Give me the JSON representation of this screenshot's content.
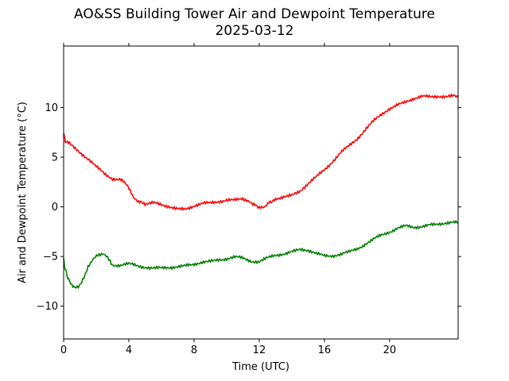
{
  "chart_data": {
    "type": "line",
    "title": "AO&SS Building Tower Air and Dewpoint Temperature",
    "subtitle": "2025-03-12",
    "xlabel": "Time (UTC)",
    "ylabel": "Air and Dewpoint Temperature (°C)",
    "xlim": [
      0,
      24.2
    ],
    "ylim": [
      -13.3,
      16.2
    ],
    "xticks": [
      0,
      4,
      8,
      12,
      16,
      20
    ],
    "xtick_labels": [
      "0",
      "4",
      "8",
      "12",
      "16",
      "20"
    ],
    "yticks": [
      -10,
      -5,
      0,
      5,
      10
    ],
    "ytick_labels": [
      "−10",
      "−5",
      "0",
      "5",
      "10"
    ],
    "grid": false,
    "legend": "none",
    "series": [
      {
        "color": "#ff0000",
        "x": [
          0,
          0.05,
          0.1,
          0.5,
          1.0,
          1.5,
          2.0,
          2.5,
          3.0,
          3.5,
          3.8,
          4.0,
          4.3,
          4.6,
          5.0,
          5.5,
          6.0,
          6.5,
          7.0,
          7.5,
          8.0,
          8.5,
          9.0,
          9.5,
          10.0,
          10.5,
          11.0,
          11.3,
          11.6,
          12.0,
          12.3,
          12.6,
          13.0,
          13.5,
          14.0,
          14.5,
          15.0,
          15.5,
          16.0,
          16.5,
          17.0,
          17.5,
          18.0,
          18.5,
          19.0,
          19.5,
          20.0,
          20.5,
          21.0,
          21.5,
          22.0,
          22.5,
          23.0,
          23.5,
          24.0,
          24.2
        ],
        "y": [
          7.4,
          7.0,
          6.6,
          6.2,
          5.5,
          4.8,
          4.0,
          3.4,
          2.9,
          2.7,
          2.4,
          1.8,
          1.0,
          0.5,
          0.3,
          0.4,
          0.2,
          0.0,
          -0.2,
          -0.2,
          0.1,
          0.3,
          0.4,
          0.6,
          0.7,
          0.6,
          0.8,
          0.6,
          0.2,
          -0.1,
          0.0,
          0.5,
          0.8,
          1.0,
          1.2,
          1.6,
          2.3,
          3.0,
          3.8,
          4.6,
          5.4,
          6.1,
          6.9,
          7.8,
          8.6,
          9.3,
          9.9,
          10.3,
          10.6,
          10.9,
          11.1,
          11.1,
          11.2,
          11.1,
          11.1,
          11.0
        ]
      },
      {
        "color": "#008000",
        "x": [
          0,
          0.05,
          0.1,
          0.2,
          0.3,
          0.5,
          0.7,
          0.9,
          1.1,
          1.3,
          1.5,
          1.8,
          2.1,
          2.4,
          2.7,
          3.0,
          3.5,
          4.0,
          4.5,
          5.0,
          5.5,
          6.0,
          6.5,
          7.0,
          7.5,
          8.0,
          8.5,
          9.0,
          9.5,
          10.0,
          10.5,
          11.0,
          11.5,
          12.0,
          12.5,
          13.0,
          13.5,
          14.0,
          14.5,
          15.0,
          15.5,
          16.0,
          16.5,
          17.0,
          17.5,
          18.0,
          18.5,
          19.0,
          19.5,
          20.0,
          20.5,
          21.0,
          21.5,
          22.0,
          22.5,
          23.0,
          23.5,
          24.0,
          24.2
        ],
        "y": [
          -5.2,
          -5.8,
          -6.3,
          -6.8,
          -7.4,
          -7.9,
          -8.2,
          -8.0,
          -7.6,
          -6.8,
          -6.0,
          -5.3,
          -4.8,
          -4.7,
          -5.2,
          -5.8,
          -5.9,
          -5.8,
          -5.9,
          -6.0,
          -6.2,
          -6.2,
          -6.1,
          -6.0,
          -5.9,
          -5.8,
          -5.6,
          -5.5,
          -5.3,
          -5.2,
          -5.1,
          -5.2,
          -5.4,
          -5.5,
          -5.2,
          -4.9,
          -4.7,
          -4.5,
          -4.3,
          -4.4,
          -4.7,
          -4.9,
          -4.9,
          -4.8,
          -4.6,
          -4.2,
          -3.7,
          -3.3,
          -2.9,
          -2.5,
          -2.1,
          -1.9,
          -2.1,
          -2.0,
          -1.8,
          -1.7,
          -1.6,
          -1.6,
          -1.5
        ]
      }
    ]
  }
}
